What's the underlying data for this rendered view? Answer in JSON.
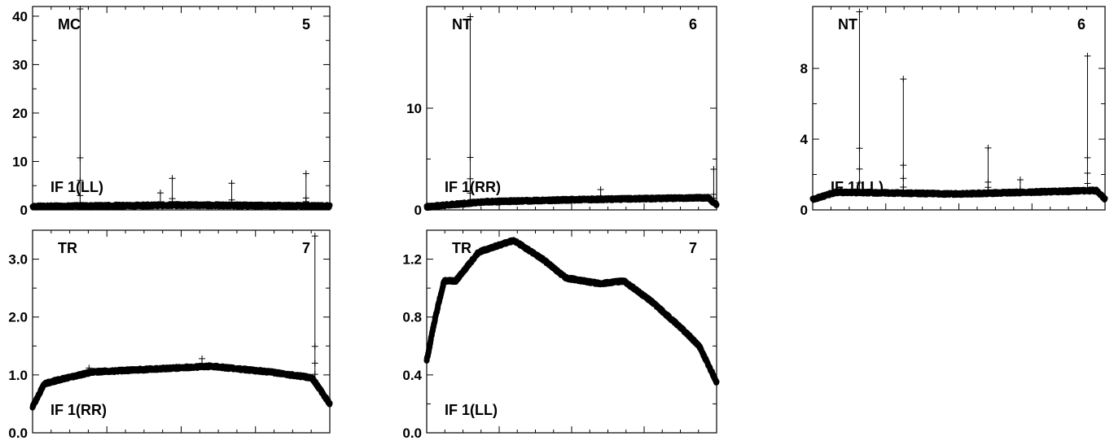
{
  "chart_data": [
    {
      "type": "line",
      "baseline_label": "IF 1(LL)",
      "station": "MC",
      "antenna_number": "5",
      "ylim": [
        0,
        42
      ],
      "yticks": [
        0,
        10,
        20,
        30,
        40
      ],
      "ytick_labels": [
        "0",
        "10",
        "20",
        "30",
        "40"
      ],
      "points": 1200,
      "level": [
        [
          0,
          0.7
        ],
        [
          0.5,
          1.0
        ],
        [
          1,
          0.8
        ]
      ],
      "spikes": [
        [
          0.16,
          41.5
        ],
        [
          0.47,
          6.5
        ],
        [
          0.67,
          5.5
        ],
        [
          0.92,
          7.5
        ],
        [
          0.43,
          3.5
        ]
      ]
    },
    {
      "type": "line",
      "baseline_label": "IF 1(RR)",
      "station": "NT",
      "antenna_number": "6",
      "ylim": [
        0,
        20
      ],
      "yticks": [
        0,
        10
      ],
      "ytick_labels": [
        "0",
        "10"
      ],
      "points": 1200,
      "level": [
        [
          0,
          0.3
        ],
        [
          0.2,
          0.8
        ],
        [
          0.5,
          1.0
        ],
        [
          0.97,
          1.2
        ],
        [
          1,
          0.5
        ]
      ],
      "spikes": [
        [
          0.15,
          19.0
        ],
        [
          0.99,
          4.0
        ],
        [
          0.6,
          2.0
        ]
      ]
    },
    {
      "type": "line",
      "baseline_label": "IF 1(LL)",
      "station": "NT",
      "antenna_number": "6",
      "ylim": [
        0,
        11.5
      ],
      "yticks": [
        0,
        4,
        8
      ],
      "ytick_labels": [
        "0",
        "4",
        "8"
      ],
      "points": 1200,
      "level": [
        [
          0,
          0.6
        ],
        [
          0.08,
          1.0
        ],
        [
          0.5,
          0.9
        ],
        [
          0.97,
          1.1
        ],
        [
          1,
          0.6
        ]
      ],
      "spikes": [
        [
          0.16,
          11.2
        ],
        [
          0.31,
          7.4
        ],
        [
          0.6,
          3.5
        ],
        [
          0.94,
          8.7
        ],
        [
          0.71,
          1.7
        ]
      ]
    },
    {
      "type": "line",
      "baseline_label": "IF 1(RR)",
      "station": "TR",
      "antenna_number": "7",
      "ylim": [
        0,
        3.5
      ],
      "yticks": [
        0,
        1,
        2,
        3
      ],
      "ytick_labels": [
        "0.0",
        "1.0",
        "2.0",
        "3.0"
      ],
      "points": 1200,
      "level": [
        [
          0,
          0.45
        ],
        [
          0.04,
          0.85
        ],
        [
          0.1,
          0.93
        ],
        [
          0.2,
          1.05
        ],
        [
          0.4,
          1.1
        ],
        [
          0.6,
          1.15
        ],
        [
          0.8,
          1.05
        ],
        [
          0.94,
          0.95
        ],
        [
          1,
          0.5
        ]
      ],
      "spikes": [
        [
          0.95,
          3.4
        ],
        [
          0.57,
          1.28
        ],
        [
          0.19,
          1.12
        ]
      ]
    },
    {
      "type": "line",
      "baseline_label": "IF 1(LL)",
      "station": "TR",
      "antenna_number": "7",
      "ylim": [
        0,
        1.4
      ],
      "yticks": [
        0,
        0.4,
        0.8,
        1.2
      ],
      "ytick_labels": [
        "0.0",
        "0.4",
        "0.8",
        "1.2"
      ],
      "points": 1200,
      "level": [
        [
          0,
          0.5
        ],
        [
          0.03,
          0.8
        ],
        [
          0.06,
          1.05
        ],
        [
          0.1,
          1.05
        ],
        [
          0.18,
          1.25
        ],
        [
          0.3,
          1.33
        ],
        [
          0.4,
          1.2
        ],
        [
          0.48,
          1.07
        ],
        [
          0.6,
          1.03
        ],
        [
          0.68,
          1.05
        ],
        [
          0.78,
          0.9
        ],
        [
          0.88,
          0.72
        ],
        [
          0.94,
          0.6
        ],
        [
          1,
          0.35
        ]
      ],
      "spikes": []
    }
  ]
}
